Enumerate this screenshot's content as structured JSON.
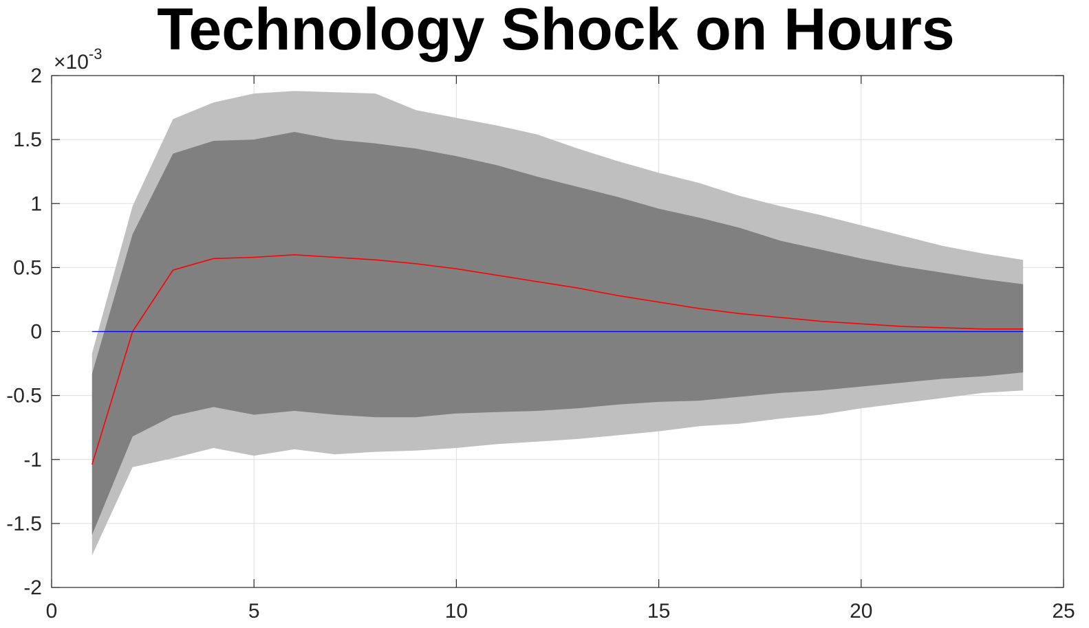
{
  "chart_data": {
    "type": "area",
    "title": "Technology Shock on Hours",
    "xlabel": "",
    "ylabel": "",
    "y_scale_exponent_label": "×10",
    "y_scale_exponent_power": "-3",
    "xlim": [
      0,
      25
    ],
    "ylim": [
      -2,
      2
    ],
    "xticks": [
      0,
      5,
      10,
      15,
      20,
      25
    ],
    "xtick_labels": [
      "0",
      "5",
      "10",
      "15",
      "20",
      "25"
    ],
    "yticks": [
      -2,
      -1.5,
      -1,
      -0.5,
      0,
      0.5,
      1,
      1.5,
      2
    ],
    "ytick_labels": [
      "-2",
      "-1.5",
      "-1",
      "-0.5",
      "0",
      "0.5",
      "1",
      "1.5",
      "2"
    ],
    "grid": true,
    "x": [
      1,
      2,
      3,
      4,
      5,
      6,
      7,
      8,
      9,
      10,
      11,
      12,
      13,
      14,
      15,
      16,
      17,
      18,
      19,
      20,
      21,
      22,
      23,
      24
    ],
    "bands": [
      {
        "role": "outer",
        "color": "#bfbfbf",
        "upper": [
          -0.17,
          0.98,
          1.66,
          1.79,
          1.86,
          1.88,
          1.87,
          1.86,
          1.73,
          1.67,
          1.61,
          1.54,
          1.43,
          1.33,
          1.24,
          1.16,
          1.06,
          0.98,
          0.91,
          0.83,
          0.75,
          0.67,
          0.61,
          0.56
        ],
        "lower": [
          -1.75,
          -1.06,
          -0.99,
          -0.91,
          -0.97,
          -0.92,
          -0.96,
          -0.94,
          -0.93,
          -0.91,
          -0.88,
          -0.86,
          -0.84,
          -0.81,
          -0.78,
          -0.74,
          -0.72,
          -0.68,
          -0.65,
          -0.6,
          -0.56,
          -0.52,
          -0.48,
          -0.46
        ]
      },
      {
        "role": "inner",
        "color": "#808080",
        "upper": [
          -0.33,
          0.76,
          1.39,
          1.49,
          1.5,
          1.56,
          1.5,
          1.47,
          1.43,
          1.37,
          1.3,
          1.21,
          1.13,
          1.05,
          0.96,
          0.89,
          0.81,
          0.71,
          0.64,
          0.57,
          0.51,
          0.46,
          0.41,
          0.37
        ],
        "lower": [
          -1.59,
          -0.82,
          -0.66,
          -0.59,
          -0.65,
          -0.62,
          -0.65,
          -0.67,
          -0.67,
          -0.64,
          -0.63,
          -0.62,
          -0.6,
          -0.57,
          -0.55,
          -0.54,
          -0.51,
          -0.48,
          -0.46,
          -0.43,
          -0.4,
          -0.37,
          -0.35,
          -0.32
        ]
      }
    ],
    "series": [
      {
        "role": "median",
        "color": "#ff0000",
        "values": [
          -1.04,
          0.0,
          0.48,
          0.57,
          0.58,
          0.6,
          0.58,
          0.56,
          0.53,
          0.49,
          0.44,
          0.39,
          0.34,
          0.28,
          0.23,
          0.18,
          0.14,
          0.11,
          0.08,
          0.06,
          0.04,
          0.03,
          0.02,
          0.02
        ]
      },
      {
        "role": "zero-line",
        "color": "#0000ff",
        "values": [
          0,
          0,
          0,
          0,
          0,
          0,
          0,
          0,
          0,
          0,
          0,
          0,
          0,
          0,
          0,
          0,
          0,
          0,
          0,
          0,
          0,
          0,
          0,
          0
        ]
      }
    ],
    "colors": {
      "background": "#ffffff",
      "grid": "#dedede",
      "axis": "#262626",
      "outer_band": "#bfbfbf",
      "inner_band": "#808080",
      "median_line": "#ff0000",
      "zero_line": "#0000ff"
    }
  }
}
